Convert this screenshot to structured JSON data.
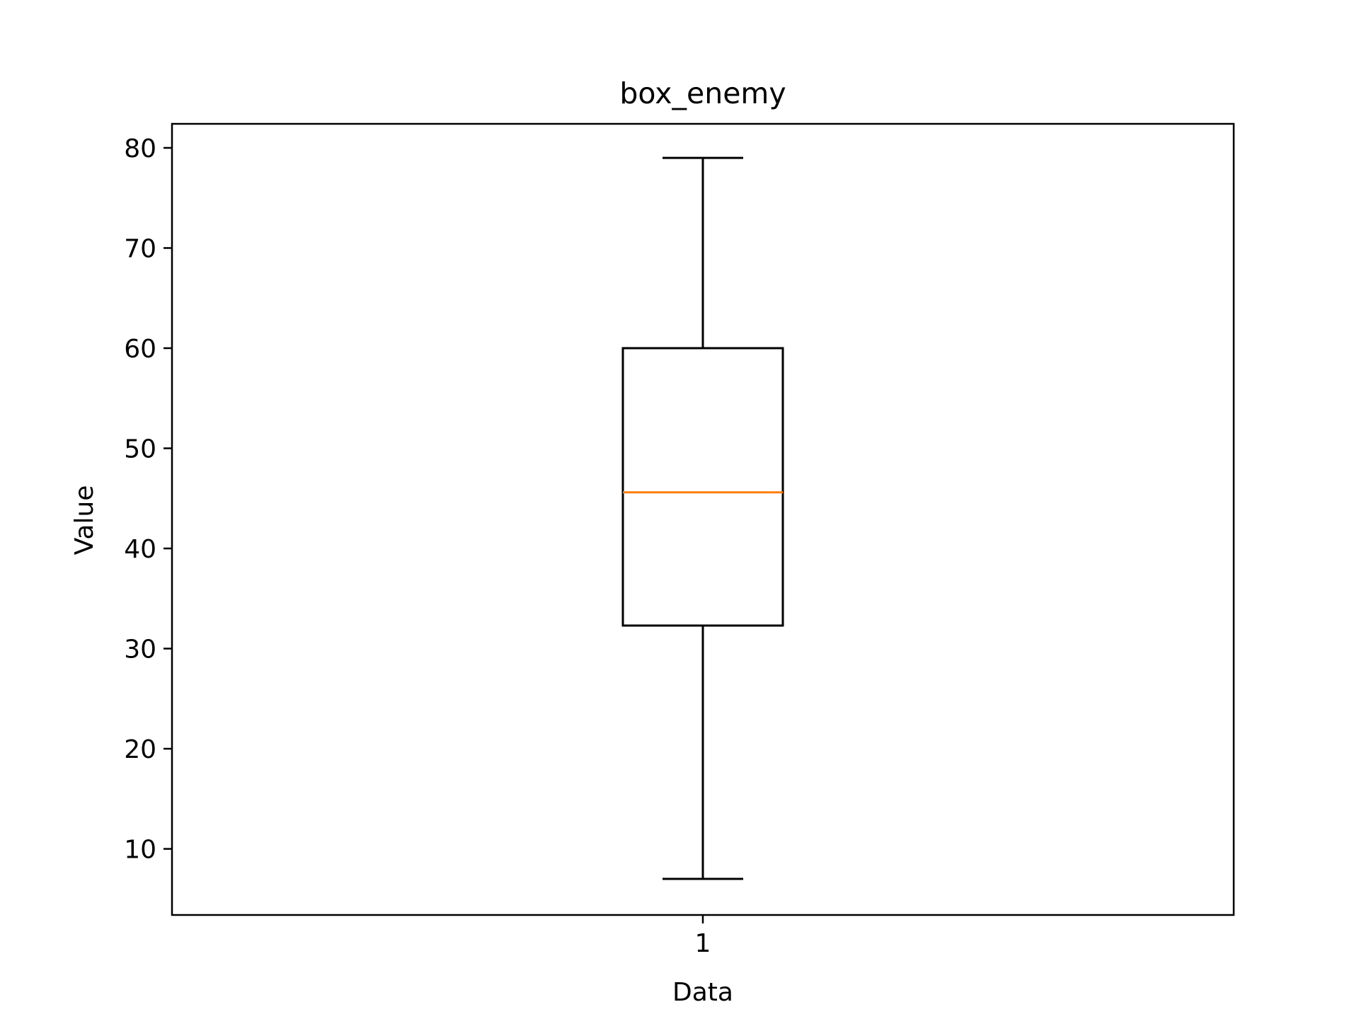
{
  "chart_data": {
    "type": "box",
    "title": "box_enemy",
    "xlabel": "Data",
    "ylabel": "Value",
    "categories": [
      "1"
    ],
    "boxes": [
      {
        "category": "1",
        "whisker_low": 7,
        "q1": 32.3,
        "median": 45.6,
        "q3": 60,
        "whisker_high": 79
      }
    ],
    "ylim": [
      3.4,
      82.4
    ],
    "yticks": [
      10,
      20,
      30,
      40,
      50,
      60,
      70,
      80
    ],
    "grid": false,
    "colors": {
      "box": "#000000",
      "median": "#ff7f0e",
      "axes": "#000000"
    }
  }
}
